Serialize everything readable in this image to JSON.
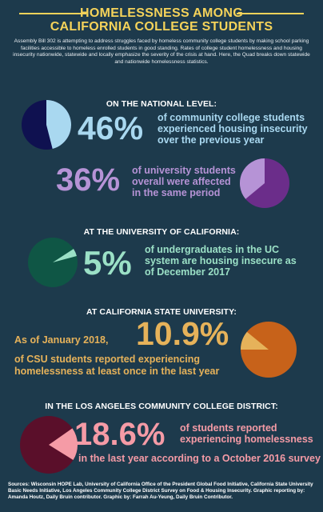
{
  "header": {
    "title_line1": "HOMELESSNESS AMONG",
    "title_line2": "CALIFORNIA COLLEGE STUDENTS",
    "intro": "Assembly Bill 302 is attempting to address struggles faced by homeless community college students by making school parking facilities accessible to homeless enrolled students in good standing. Rates of college student homelessness and housing insecurity nationwide, statewide and locally emphasize the severity of the crisis at hand. Here, the Quad breaks down statewide and nationwide homelessness statistics."
  },
  "national": {
    "heading": "ON THE NATIONAL LEVEL:",
    "cc": {
      "value": 46,
      "label": "46%",
      "line1": "of community college students",
      "line2": "experienced housing insecurity",
      "line3": "over the previous year"
    },
    "univ": {
      "value": 36,
      "label": "36%",
      "line1": "of university students",
      "line2": "overall were affected",
      "line3": "in the same period"
    }
  },
  "uc": {
    "heading": "AT THE UNIVERSITY OF CALIFORNIA:",
    "value": 5,
    "label": "5%",
    "line1": "of undergraduates in the UC",
    "line2": "system are housing insecure as",
    "line3": "of December 2017"
  },
  "csu": {
    "heading": "AT CALIFORNIA STATE UNIVERSITY:",
    "value": 10.9,
    "label": "10.9%",
    "prefix": "As of January 2018,",
    "line1": "of CSU students reported experiencing",
    "line2": "homelessness at least once in the last year"
  },
  "lacc": {
    "heading": "IN THE LOS ANGELES COMMUNITY COLLEGE DISTRICT:",
    "value": 18.6,
    "label": "18.6%",
    "line1": "of students reported",
    "line2": "experiencing homelessness",
    "line3": "in the last year according to a October 2016 survey"
  },
  "footer": {
    "sources": "Sources: Wisconsin HOPE Lab, University of California Office of the President Global Food Initiative, California State University Basic Needs Initiative, Los Angeles Community College District Survey on Food & Housing Insecurity. Graphic reporting by: Amanda Houtz, Daily Bruin contributor. Graphic by: Farrah Au-Yeung, Daily Bruin Contributor."
  },
  "colors": {
    "background": "#1d3a4c",
    "title": "#f5d35a",
    "national_light": "#a9d8f0",
    "national_dark": "#0f1150",
    "univ_light": "#b693d6",
    "univ_dark": "#6b2d8a",
    "uc_light": "#9be0c6",
    "uc_dark": "#0f5645",
    "csu_light": "#e6b25a",
    "csu_dark": "#c7621a",
    "lacc_light": "#f59ba6",
    "lacc_dark": "#5a0f2a"
  }
}
